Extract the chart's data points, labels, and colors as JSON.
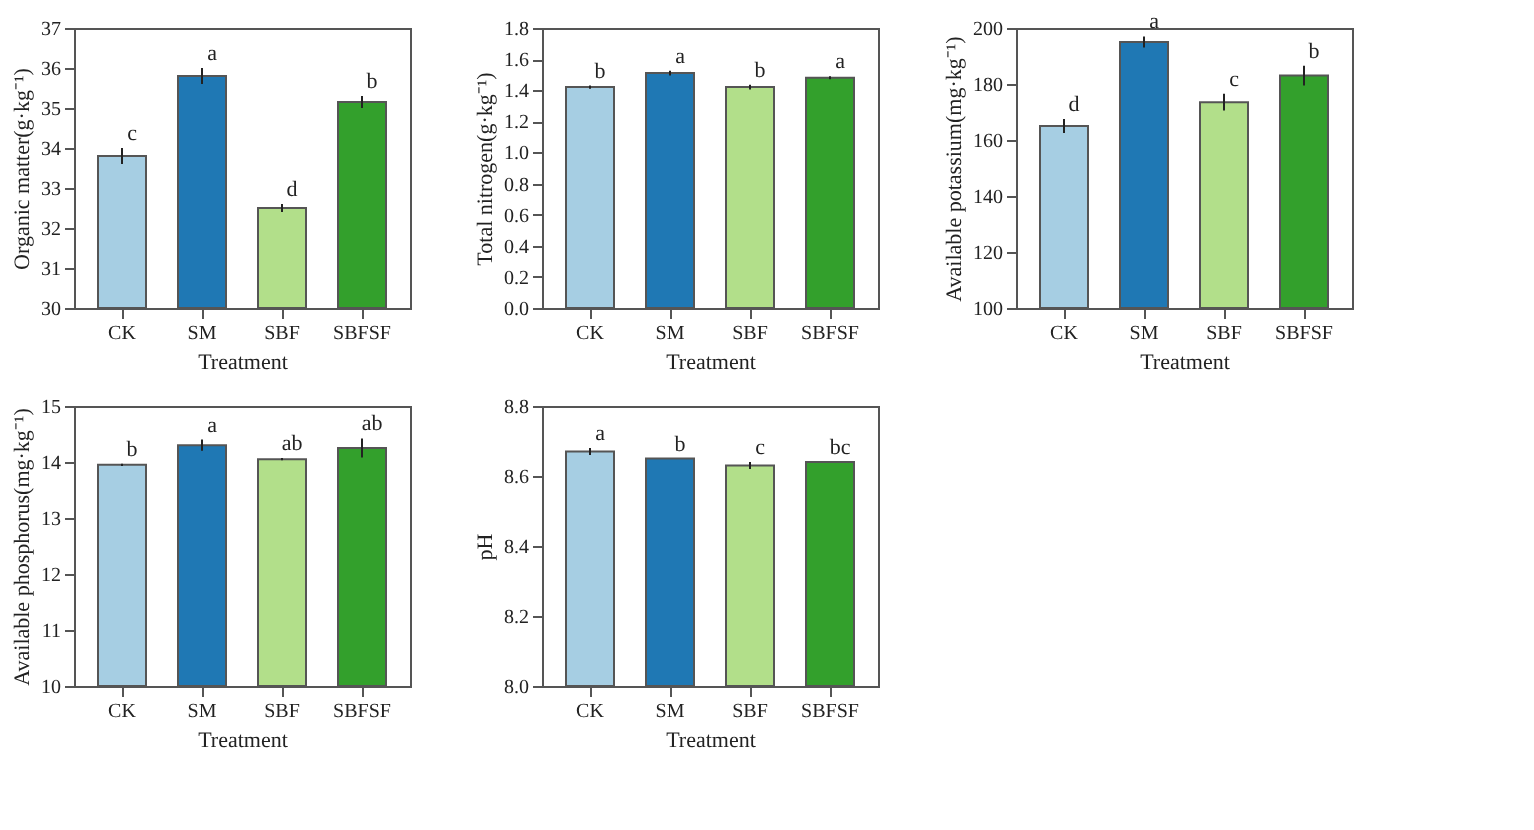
{
  "chart_data": [
    {
      "type": "bar",
      "xlabel": "Treatment",
      "ylabel": "Organic matter(g·kg⁻¹)",
      "categories": [
        "CK",
        "SM",
        "SBF",
        "SBFSF"
      ],
      "values": [
        33.8,
        35.8,
        32.5,
        35.15
      ],
      "errors": [
        0.2,
        0.2,
        0.1,
        0.15
      ],
      "colors": [
        "#a6cee3",
        "#1f78b4",
        "#b2df8a",
        "#33a02c"
      ],
      "ylim": [
        30,
        37
      ],
      "yticks": [
        30,
        31,
        32,
        33,
        34,
        35,
        36,
        37
      ],
      "grid": false,
      "annotations": [
        {
          "text": "c",
          "x": "CK",
          "y": 34.0
        },
        {
          "text": "a",
          "x": "SM",
          "y": 36.0
        },
        {
          "text": "d",
          "x": "SBF",
          "y": 32.6
        },
        {
          "text": "b",
          "x": "SBFSF",
          "y": 35.3
        }
      ]
    },
    {
      "type": "bar",
      "xlabel": "Treatment",
      "ylabel": "Total nitrogen(g·kg⁻¹)",
      "categories": [
        "CK",
        "SM",
        "SBF",
        "SBFSF"
      ],
      "values": [
        1.42,
        1.51,
        1.42,
        1.48
      ],
      "errors": [
        0.01,
        0.015,
        0.015,
        0.01
      ],
      "colors": [
        "#a6cee3",
        "#1f78b4",
        "#b2df8a",
        "#33a02c"
      ],
      "ylim": [
        0,
        1.8
      ],
      "yticks": [
        {
          "value": 0,
          "label": "0.0"
        },
        0.2,
        0.4,
        0.6,
        0.8,
        {
          "value": 1,
          "label": "1.0"
        },
        1.2,
        1.4,
        1.6,
        1.8
      ],
      "grid": false,
      "annotations": [
        {
          "text": "b",
          "x": "CK",
          "y": 1.43
        },
        {
          "text": "a",
          "x": "SM",
          "y": 1.525
        },
        {
          "text": "b",
          "x": "SBF",
          "y": 1.435
        },
        {
          "text": "a",
          "x": "SBFSF",
          "y": 1.49
        }
      ]
    },
    {
      "type": "bar",
      "xlabel": "Treatment",
      "ylabel": "Available potassium(mg·kg⁻¹)",
      "categories": [
        "CK",
        "SM",
        "SBF",
        "SBFSF"
      ],
      "values": [
        165,
        195,
        173.5,
        183
      ],
      "errors": [
        2.5,
        2,
        3,
        3.5
      ],
      "colors": [
        "#a6cee3",
        "#1f78b4",
        "#b2df8a",
        "#33a02c"
      ],
      "ylim": [
        100,
        200
      ],
      "yticks": [
        100,
        120,
        140,
        160,
        180,
        200
      ],
      "grid": false,
      "annotations": [
        {
          "text": "d",
          "x": "CK",
          "y": 167.5
        },
        {
          "text": "a",
          "x": "SM",
          "y": 197
        },
        {
          "text": "c",
          "x": "SBF",
          "y": 176.5
        },
        {
          "text": "b",
          "x": "SBFSF",
          "y": 186.5
        }
      ]
    },
    {
      "type": "bar",
      "xlabel": "Treatment",
      "ylabel": "Available phosphorus(mg·kg⁻¹)",
      "categories": [
        "CK",
        "SM",
        "SBF",
        "SBFSF"
      ],
      "values": [
        13.95,
        14.3,
        14.05,
        14.25
      ],
      "errors": [
        0.02,
        0.1,
        0.02,
        0.17
      ],
      "colors": [
        "#a6cee3",
        "#1f78b4",
        "#b2df8a",
        "#33a02c"
      ],
      "ylim": [
        10,
        15
      ],
      "yticks": [
        10,
        11,
        12,
        13,
        14,
        15
      ],
      "grid": false,
      "annotations": [
        {
          "text": "b",
          "x": "CK",
          "y": 13.97
        },
        {
          "text": "a",
          "x": "SM",
          "y": 14.4
        },
        {
          "text": "ab",
          "x": "SBF",
          "y": 14.07
        },
        {
          "text": "ab",
          "x": "SBFSF",
          "y": 14.42
        }
      ]
    },
    {
      "type": "bar",
      "xlabel": "Treatment",
      "ylabel": "pH",
      "categories": [
        "CK",
        "SM",
        "SBF",
        "SBFSF"
      ],
      "values": [
        8.67,
        8.65,
        8.63,
        8.64
      ],
      "errors": [
        0.01,
        null,
        0.01,
        null
      ],
      "colors": [
        "#a6cee3",
        "#1f78b4",
        "#b2df8a",
        "#33a02c"
      ],
      "ylim": [
        8.0,
        8.8
      ],
      "yticks": [
        {
          "value": 8,
          "label": "8.0"
        },
        8.2,
        8.4,
        8.6,
        8.8
      ],
      "grid": false,
      "annotations": [
        {
          "text": "a",
          "x": "CK",
          "y": 8.68
        },
        {
          "text": "b",
          "x": "SM",
          "y": 8.65
        },
        {
          "text": "c",
          "x": "SBF",
          "y": 8.64
        },
        {
          "text": "bc",
          "x": "SBFSF",
          "y": 8.64
        }
      ]
    }
  ]
}
